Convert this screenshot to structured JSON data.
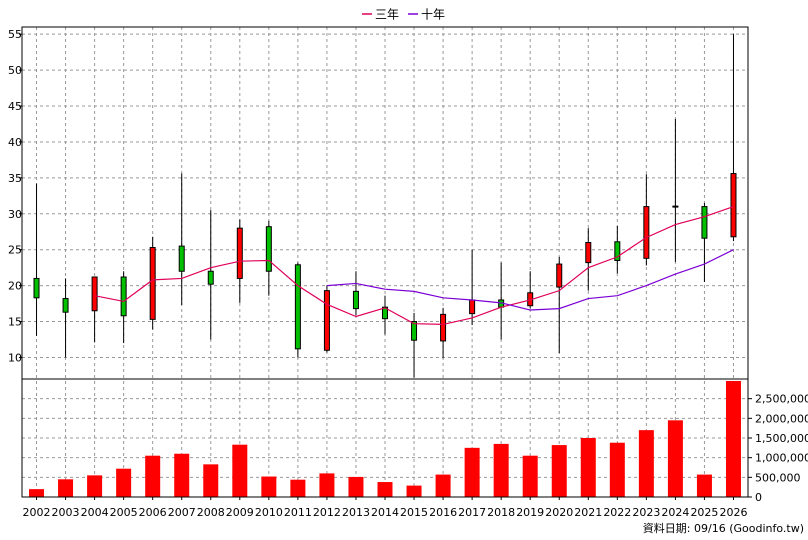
{
  "chart_data": {
    "type": "candlestick",
    "categories": [
      "2002",
      "2003",
      "2004",
      "2005",
      "2006",
      "2007",
      "2008",
      "2009",
      "2010",
      "2011",
      "2012",
      "2013",
      "2014",
      "2015",
      "2016",
      "2017",
      "2018",
      "2019",
      "2020",
      "2021",
      "2022",
      "2023",
      "2024",
      "2025",
      "2026"
    ],
    "ohlc": [
      {
        "open": 18.3,
        "high": 34.2,
        "low": 13.0,
        "close": 21.0
      },
      {
        "open": 16.3,
        "high": 21.0,
        "low": 10.0,
        "close": 18.2
      },
      {
        "open": 21.2,
        "high": 21.2,
        "low": 12.1,
        "close": 16.5
      },
      {
        "open": 15.8,
        "high": 22.0,
        "low": 12.0,
        "close": 21.2
      },
      {
        "open": 25.3,
        "high": 26.8,
        "low": 13.9,
        "close": 15.3
      },
      {
        "open": 22.0,
        "high": 35.6,
        "low": 17.3,
        "close": 25.5
      },
      {
        "open": 20.2,
        "high": 30.5,
        "low": 12.5,
        "close": 22.0
      },
      {
        "open": 28.0,
        "high": 29.2,
        "low": 17.6,
        "close": 21.0
      },
      {
        "open": 22.0,
        "high": 29.0,
        "low": 18.6,
        "close": 28.2
      },
      {
        "open": 11.2,
        "high": 23.2,
        "low": 10.0,
        "close": 22.9
      },
      {
        "open": 19.3,
        "high": 20.0,
        "low": 10.7,
        "close": 11.0
      },
      {
        "open": 16.8,
        "high": 22.0,
        "low": 15.9,
        "close": 19.2
      },
      {
        "open": 15.4,
        "high": 18.6,
        "low": 13.2,
        "close": 17.0
      },
      {
        "open": 12.4,
        "high": 16.2,
        "low": 7.2,
        "close": 15.0
      },
      {
        "open": 16.0,
        "high": 16.9,
        "low": 9.9,
        "close": 12.3
      },
      {
        "open": 18.0,
        "high": 25.0,
        "low": 14.5,
        "close": 16.1
      },
      {
        "open": 17.0,
        "high": 23.2,
        "low": 12.5,
        "close": 18.0
      },
      {
        "open": 19.0,
        "high": 22.0,
        "low": 16.8,
        "close": 17.2
      },
      {
        "open": 23.0,
        "high": 24.0,
        "low": 10.6,
        "close": 19.8
      },
      {
        "open": 26.0,
        "high": 28.0,
        "low": 19.3,
        "close": 23.2
      },
      {
        "open": 23.5,
        "high": 28.3,
        "low": 21.7,
        "close": 26.1
      },
      {
        "open": 31.0,
        "high": 35.5,
        "low": 22.8,
        "close": 23.8
      },
      {
        "open": 31.0,
        "high": 43.2,
        "low": 23.3,
        "close": 31.0
      },
      {
        "open": 26.6,
        "high": 31.5,
        "low": 20.5,
        "close": 31.0
      },
      {
        "open": 35.6,
        "high": 55.0,
        "low": 26.2,
        "close": 26.8
      }
    ],
    "volume": [
      200000,
      450000,
      550000,
      720000,
      1050000,
      1100000,
      830000,
      1330000,
      520000,
      440000,
      600000,
      510000,
      380000,
      290000,
      570000,
      1250000,
      1350000,
      1050000,
      1320000,
      1500000,
      1380000,
      1700000,
      1950000,
      570000,
      2950000
    ],
    "series": [
      {
        "name": "三年",
        "color": "#e0005a",
        "values": [
          null,
          null,
          18.6,
          17.8,
          20.8,
          21.0,
          22.5,
          23.4,
          23.5,
          20.0,
          17.4,
          15.7,
          16.9,
          14.7,
          14.6,
          15.5,
          17.0,
          18.0,
          19.3,
          22.5,
          24.0,
          26.7,
          28.5,
          29.6,
          31.0
        ]
      },
      {
        "name": "十年",
        "color": "#7b00d4",
        "values": [
          null,
          null,
          null,
          null,
          null,
          null,
          null,
          null,
          null,
          null,
          20.0,
          20.3,
          19.5,
          19.2,
          18.3,
          18.0,
          17.6,
          16.6,
          16.8,
          18.2,
          18.6,
          20.0,
          21.6,
          23.0,
          25.0
        ]
      }
    ],
    "price_axis": {
      "min": 7,
      "max": 56,
      "ticks": [
        10,
        15,
        20,
        25,
        30,
        35,
        40,
        45,
        50,
        55
      ]
    },
    "volume_axis": {
      "min": 0,
      "max": 3000000,
      "ticks": [
        0,
        500000,
        1000000,
        1500000,
        2000000,
        2500000
      ],
      "tick_labels": [
        "0",
        "500,000",
        "1,000,000",
        "1,500,000",
        "2,000,000",
        "2,500,000"
      ]
    },
    "colors": {
      "up": "#00c000",
      "down": "#ff0000",
      "volume": "#ff0000",
      "grid": "#999999"
    },
    "grid": true,
    "legend_position": "top-center"
  },
  "footer": {
    "text": "資料日期: 09/16  (Goodinfo.tw)"
  }
}
